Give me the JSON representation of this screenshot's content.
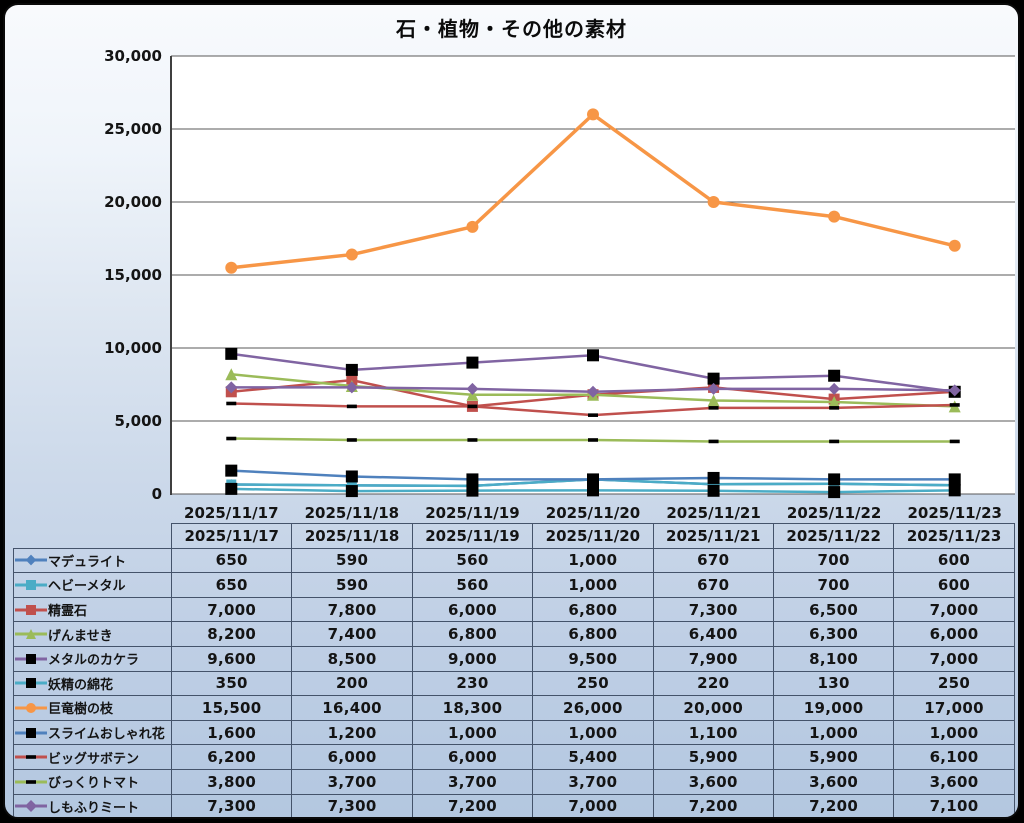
{
  "chart_data": {
    "type": "line",
    "title": "石・植物・その他の素材",
    "categories": [
      "2025/11/17",
      "2025/11/18",
      "2025/11/19",
      "2025/11/20",
      "2025/11/21",
      "2025/11/22",
      "2025/11/23"
    ],
    "ylim": [
      0,
      30000
    ],
    "ytick_step": 5000,
    "yticks": [
      "0",
      "5,000",
      "10,000",
      "15,000",
      "20,000",
      "25,000",
      "30,000"
    ],
    "grid": true,
    "legend_position": "table-left",
    "plot_bg": "#ffffff",
    "grid_color": "#595959",
    "axis_color": "#3f3f3f",
    "series": [
      {
        "name": "マデュライト",
        "color": "#4F81BD",
        "marker": "diamond",
        "marker_color": "#4F81BD",
        "marker_size": 8,
        "line_width": 2.5,
        "values": [
          650,
          590,
          560,
          1000,
          670,
          700,
          600
        ]
      },
      {
        "name": "ヘビーメタル",
        "color": "#4BACC6",
        "marker": "square",
        "marker_color": "#4BACC6",
        "marker_size": 10,
        "line_width": 2.5,
        "values": [
          650,
          590,
          560,
          1000,
          670,
          700,
          600
        ]
      },
      {
        "name": "精霊石",
        "color": "#C0504D",
        "marker": "square",
        "marker_color": "#C0504D",
        "marker_size": 11,
        "line_width": 2.5,
        "values": [
          7000,
          7800,
          6000,
          6800,
          7300,
          6500,
          7000
        ]
      },
      {
        "name": "げんませき",
        "color": "#9BBB59",
        "marker": "triangle",
        "marker_color": "#9BBB59",
        "marker_size": 12,
        "line_width": 2.5,
        "values": [
          8200,
          7400,
          6800,
          6800,
          6400,
          6300,
          6000
        ]
      },
      {
        "name": "メタルのカケラ",
        "color": "#8064A2",
        "marker": "square",
        "marker_color": "#000000",
        "marker_size": 12,
        "line_width": 2.5,
        "values": [
          9600,
          8500,
          9000,
          9500,
          7900,
          8100,
          7000
        ]
      },
      {
        "name": "妖精の綿花",
        "color": "#4BACC6",
        "marker": "square",
        "marker_color": "#000000",
        "marker_size": 12,
        "line_width": 2.5,
        "values": [
          350,
          200,
          230,
          250,
          220,
          130,
          250
        ]
      },
      {
        "name": "巨竜樹の枝",
        "color": "#F79646",
        "marker": "circle",
        "marker_color": "#F79646",
        "marker_size": 12,
        "line_width": 3.5,
        "values": [
          15500,
          16400,
          18300,
          26000,
          20000,
          19000,
          17000
        ]
      },
      {
        "name": "スライムおしゃれ花",
        "color": "#4F81BD",
        "marker": "square",
        "marker_color": "#000000",
        "marker_size": 12,
        "line_width": 2.5,
        "values": [
          1600,
          1200,
          1000,
          1000,
          1100,
          1000,
          1000
        ]
      },
      {
        "name": "ビッグサボテン",
        "color": "#C0504D",
        "marker": "dash",
        "marker_color": "#000000",
        "marker_size": 10,
        "line_width": 2.5,
        "values": [
          6200,
          6000,
          6000,
          5400,
          5900,
          5900,
          6100
        ]
      },
      {
        "name": "びっくりトマト",
        "color": "#9BBB59",
        "marker": "dash",
        "marker_color": "#000000",
        "marker_size": 10,
        "line_width": 2.5,
        "values": [
          3800,
          3700,
          3700,
          3700,
          3600,
          3600,
          3600
        ]
      },
      {
        "name": "しもふりミート",
        "color": "#8064A2",
        "marker": "diamond",
        "marker_color": "#8064A2",
        "marker_size": 9,
        "line_width": 2.5,
        "values": [
          7300,
          7300,
          7200,
          7000,
          7200,
          7200,
          7100
        ]
      }
    ]
  },
  "table": {
    "header_dates": [
      "2025/11/17",
      "2025/11/18",
      "2025/11/19",
      "2025/11/20",
      "2025/11/21",
      "2025/11/22",
      "2025/11/23"
    ],
    "rows": [
      {
        "label": "マデュライト",
        "values": [
          "650",
          "590",
          "560",
          "1,000",
          "670",
          "700",
          "600"
        ]
      },
      {
        "label": "ヘビーメタル",
        "values": [
          "650",
          "590",
          "560",
          "1,000",
          "670",
          "700",
          "600"
        ]
      },
      {
        "label": "精霊石",
        "values": [
          "7,000",
          "7,800",
          "6,000",
          "6,800",
          "7,300",
          "6,500",
          "7,000"
        ]
      },
      {
        "label": "げんませき",
        "values": [
          "8,200",
          "7,400",
          "6,800",
          "6,800",
          "6,400",
          "6,300",
          "6,000"
        ]
      },
      {
        "label": "メタルのカケラ",
        "values": [
          "9,600",
          "8,500",
          "9,000",
          "9,500",
          "7,900",
          "8,100",
          "7,000"
        ]
      },
      {
        "label": "妖精の綿花",
        "values": [
          "350",
          "200",
          "230",
          "250",
          "220",
          "130",
          "250"
        ]
      },
      {
        "label": "巨竜樹の枝",
        "values": [
          "15,500",
          "16,400",
          "18,300",
          "26,000",
          "20,000",
          "19,000",
          "17,000"
        ]
      },
      {
        "label": "スライムおしゃれ花",
        "values": [
          "1,600",
          "1,200",
          "1,000",
          "1,000",
          "1,100",
          "1,000",
          "1,000"
        ]
      },
      {
        "label": "ビッグサボテン",
        "values": [
          "6,200",
          "6,000",
          "6,000",
          "5,400",
          "5,900",
          "5,900",
          "6,100"
        ]
      },
      {
        "label": "びっくりトマト",
        "values": [
          "3,800",
          "3,700",
          "3,700",
          "3,700",
          "3,600",
          "3,600",
          "3,600"
        ]
      },
      {
        "label": "しもふりミート",
        "values": [
          "7,300",
          "7,300",
          "7,200",
          "7,000",
          "7,200",
          "7,200",
          "7,100"
        ]
      }
    ]
  }
}
